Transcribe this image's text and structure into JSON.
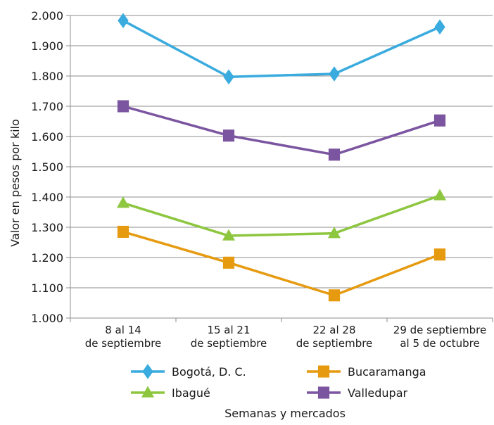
{
  "chart_data": {
    "type": "line",
    "title": "",
    "xlabel": "Semanas y mercados",
    "ylabel": "Valor en pesos por kilo",
    "ylim": [
      1000,
      2000
    ],
    "yticks": [
      {
        "value": 1000,
        "label": "1.000"
      },
      {
        "value": 1100,
        "label": "1.100"
      },
      {
        "value": 1200,
        "label": "1.200"
      },
      {
        "value": 1300,
        "label": "1.300"
      },
      {
        "value": 1400,
        "label": "1.400"
      },
      {
        "value": 1500,
        "label": "1.500"
      },
      {
        "value": 1600,
        "label": "1.600"
      },
      {
        "value": 1700,
        "label": "1.700"
      },
      {
        "value": 1800,
        "label": "1.800"
      },
      {
        "value": 1900,
        "label": "1.900"
      },
      {
        "value": 2000,
        "label": "2.000"
      }
    ],
    "categories": [
      [
        "8 al 14",
        "de septiembre"
      ],
      [
        "15 al 21",
        "de septiembre"
      ],
      [
        "22 al 28",
        "de septiembre"
      ],
      [
        "29 de septiembre",
        "al 5 de octubre"
      ]
    ],
    "grid": true,
    "legend_position": "bottom",
    "series": [
      {
        "name": "Bogotá, D. C.",
        "marker": "diamond",
        "color": "#3AABDE",
        "values": [
          1983,
          1797,
          1807,
          1962
        ]
      },
      {
        "name": "Bucaramanga",
        "marker": "square",
        "color": "#E69A0F",
        "values": [
          1285,
          1183,
          1075,
          1210
        ]
      },
      {
        "name": "Ibagué",
        "marker": "triangle",
        "color": "#8DC63F",
        "values": [
          1380,
          1272,
          1280,
          1405
        ]
      },
      {
        "name": "Valledupar",
        "marker": "square",
        "color": "#7B55A0",
        "values": [
          1700,
          1603,
          1540,
          1653
        ]
      }
    ]
  }
}
